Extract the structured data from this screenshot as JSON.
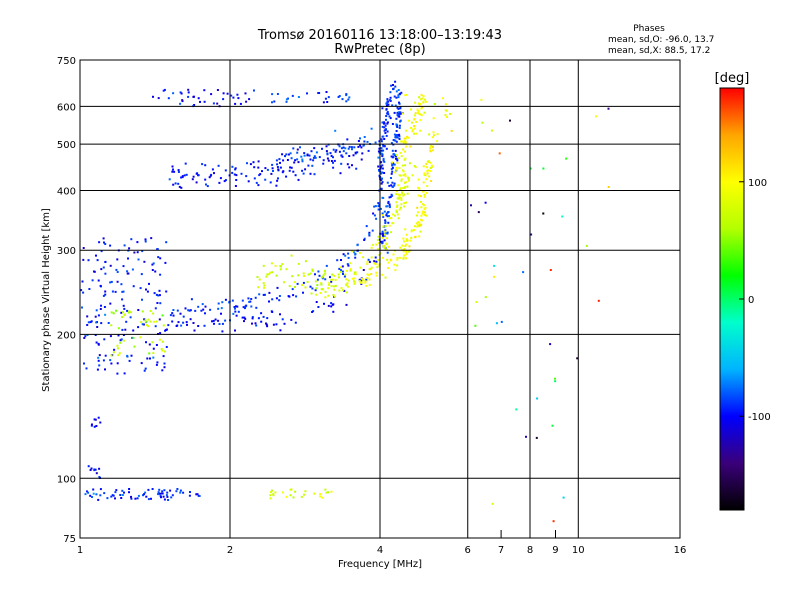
{
  "chart_data": {
    "type": "scatter",
    "title": "Tromsø 20160116 13:18:00–13:19:43",
    "subtitle": "RwPretec (8p)",
    "xlabel": "Frequency [MHz]",
    "ylabel": "Stationary phase Virtual Height [km]",
    "x_scale": "log",
    "y_scale": "log",
    "xlim": [
      1,
      16
    ],
    "ylim": [
      75,
      750
    ],
    "grid": true,
    "x_ticks": [
      1,
      2,
      4,
      6,
      8,
      10,
      16
    ],
    "x_tick_labels": [
      "1",
      "2",
      "4",
      "6",
      "8",
      "10",
      "16"
    ],
    "x_minor_ticks": [
      7,
      9
    ],
    "x_minor_tick_labels": [
      "7",
      "9"
    ],
    "y_ticks": [
      75,
      100,
      200,
      300,
      400,
      500,
      600,
      750
    ],
    "y_tick_labels": [
      "75",
      "100",
      "200",
      "300",
      "400",
      "500",
      "600",
      "750"
    ],
    "stats": {
      "heading": "Phases",
      "line_o": "mean, sd,O: -96.0, 13.7",
      "line_x": "mean, sd,X:  88.5, 17.2"
    },
    "colorbar": {
      "label": "[deg]",
      "range": [
        -180,
        180
      ],
      "ticks": [
        100,
        0,
        -100
      ],
      "tick_labels": [
        "100",
        "0",
        "-100"
      ],
      "colors": [
        "#000000",
        "#3a007a",
        "#0000ff",
        "#00b4ff",
        "#00ffcc",
        "#00ff00",
        "#b4ff00",
        "#ffff00",
        "#ffa500",
        "#ff0000"
      ]
    },
    "traces": [
      {
        "kind": "curve",
        "phase": -100,
        "spread": 8,
        "n": 100,
        "x": [
          1.0,
          1.2,
          1.5,
          2.0,
          2.5,
          3.0,
          3.3,
          3.6,
          3.85,
          4.0,
          4.15
        ],
        "y": [
          213,
          216,
          212,
          211,
          214,
          222,
          232,
          252,
          282,
          312,
          360
        ]
      },
      {
        "kind": "curve",
        "phase": -90,
        "spread": 9,
        "n": 130,
        "x": [
          1.35,
          1.6,
          2.0,
          2.5,
          3.0,
          3.4,
          3.7,
          3.9,
          4.05
        ],
        "y": [
          240,
          222,
          230,
          242,
          258,
          282,
          312,
          352,
          402
        ]
      },
      {
        "kind": "curve",
        "phase": -88,
        "spread": 8,
        "n": 130,
        "x": [
          4.05,
          4.15,
          4.25,
          4.3,
          4.35,
          4.4
        ],
        "y": [
          300,
          370,
          430,
          500,
          570,
          640
        ]
      },
      {
        "kind": "curve",
        "phase": -92,
        "spread": 8,
        "n": 100,
        "x": [
          4.0,
          4.05,
          4.1,
          4.15,
          4.2,
          4.3
        ],
        "y": [
          420,
          500,
          560,
          610,
          640,
          660
        ]
      },
      {
        "kind": "curve",
        "phase": -98,
        "spread": 12,
        "n": 150,
        "x": [
          1.5,
          1.7,
          2.0,
          2.5,
          3.0,
          3.5,
          3.8
        ],
        "y": [
          430,
          425,
          430,
          440,
          455,
          478,
          498
        ]
      },
      {
        "kind": "curve",
        "phase": -85,
        "spread": 10,
        "n": 50,
        "x": [
          2.5,
          3.0,
          3.5,
          3.9
        ],
        "y": [
          470,
          480,
          500,
          520
        ]
      },
      {
        "kind": "curve",
        "phase": 95,
        "spread": 10,
        "n": 150,
        "x": [
          3.5,
          3.9,
          4.2,
          4.5,
          4.8,
          4.95,
          5.1
        ],
        "y": [
          255,
          270,
          285,
          300,
          340,
          420,
          520
        ]
      },
      {
        "kind": "curve",
        "phase": 85,
        "spread": 12,
        "n": 130,
        "x": [
          3.0,
          3.4,
          3.8,
          4.1,
          4.4,
          4.6
        ],
        "y": [
          240,
          262,
          288,
          318,
          382,
          460
        ]
      },
      {
        "kind": "curve",
        "phase": 70,
        "spread": 12,
        "n": 60,
        "x": [
          2.3,
          2.6,
          3.0,
          3.3
        ],
        "y": [
          268,
          270,
          258,
          252
        ]
      },
      {
        "kind": "curve",
        "phase": 95,
        "spread": 8,
        "n": 60,
        "x": [
          4.3,
          4.5,
          4.7,
          4.9
        ],
        "y": [
          450,
          500,
          550,
          620
        ]
      },
      {
        "kind": "cloud",
        "phase": -95,
        "n": 160,
        "x": [
          1.0,
          1.5
        ],
        "y": [
          165,
          320
        ]
      },
      {
        "kind": "cloud",
        "phase": 65,
        "n": 45,
        "x": [
          1.15,
          1.5
        ],
        "y": [
          180,
          225
        ]
      },
      {
        "kind": "cloud",
        "phase": -90,
        "n": 70,
        "x": [
          1.0,
          1.75
        ],
        "y": [
          90,
          95
        ]
      },
      {
        "kind": "cloud",
        "phase": 80,
        "n": 25,
        "x": [
          2.4,
          3.2
        ],
        "y": [
          90,
          95
        ]
      },
      {
        "kind": "cloud",
        "phase": -100,
        "n": 10,
        "x": [
          1.02,
          1.1
        ],
        "y": [
          100,
          108
        ]
      },
      {
        "kind": "cloud",
        "phase": -100,
        "n": 8,
        "x": [
          1.05,
          1.1
        ],
        "y": [
          128,
          136
        ]
      },
      {
        "kind": "cloud",
        "phase": -100,
        "n": 40,
        "x": [
          1.4,
          2.3
        ],
        "y": [
          600,
          650
        ]
      },
      {
        "kind": "cloud",
        "phase": -90,
        "n": 25,
        "x": [
          2.4,
          3.5
        ],
        "y": [
          610,
          645
        ]
      },
      {
        "kind": "cloud",
        "phase": 90,
        "n": 25,
        "x": [
          4.3,
          5.6
        ],
        "y": [
          520,
          660
        ]
      },
      {
        "kind": "cloud",
        "phase": 0,
        "n": 40,
        "x": [
          5.8,
          12.5
        ],
        "y": [
          80,
          640
        ]
      }
    ]
  }
}
